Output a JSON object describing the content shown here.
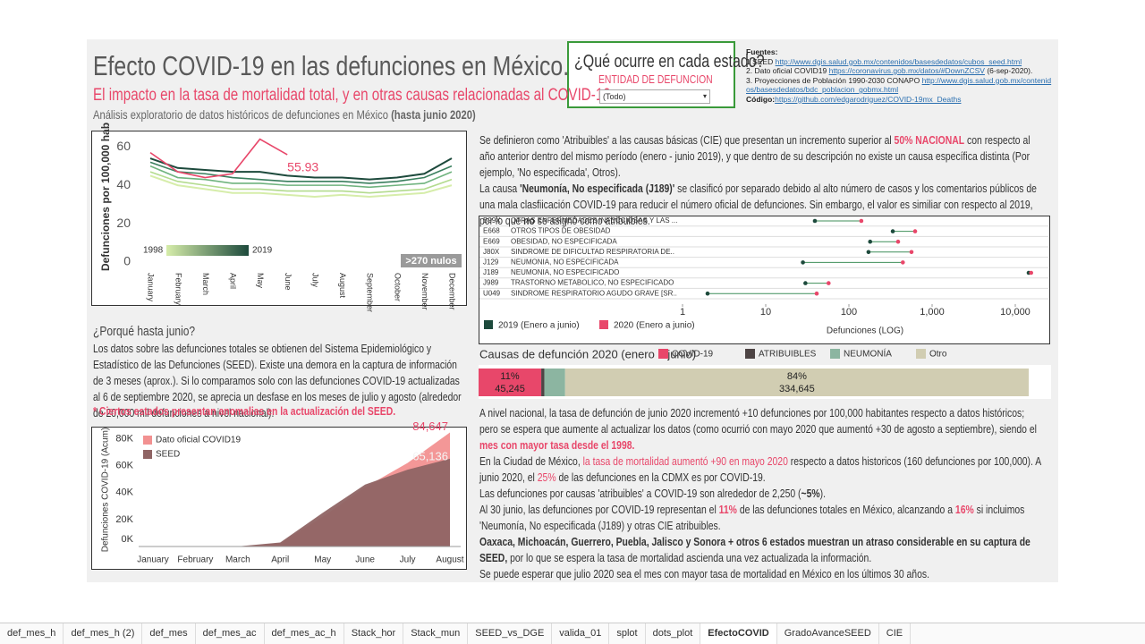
{
  "header": {
    "title": "Efecto COVID-19 en las defunciones en México.",
    "subtitle": "El impacto en la tasa de mortalidad total, y en otras causas relacionadas al COVID-19",
    "description": [
      {
        "text": "Análisis exploratorio de datos históricos de defunciones en México "
      },
      {
        "text": "(hasta junio 2020)",
        "style": "bold"
      }
    ]
  },
  "filter": {
    "question": "¿Qué ocurre en cada estado?",
    "label": "ENTIDAD DE DEFUNCION",
    "value": "(Todo)"
  },
  "sources": {
    "title": "Fuentes:",
    "items": [
      [
        {
          "text": "1 SEED "
        },
        {
          "text": "http://www.dgis.salud.gob.mx/contenidos/basesdedatos/cubos_seed.html",
          "style": "link"
        }
      ],
      [
        {
          "text": "2. Dato oficial COVID19  "
        },
        {
          "text": "https://coronavirus.gob.mx/datos/#DownZCSV",
          "style": "link"
        },
        {
          "text": " (6-sep-2020)."
        }
      ],
      [
        {
          "text": "3. Proyecciones de Población 1990-2030 CONAPO  "
        },
        {
          "text": "http://www.dgis.salud.gob.mx/contenidos/basesdedatos/bdc_poblacion_gobmx.html",
          "style": "link"
        }
      ],
      [
        {
          "text": "Código:",
          "style": "bold"
        },
        {
          "text": "https://github.com/edgarodriguez/COVID-19mx_Deaths",
          "style": "link"
        }
      ]
    ]
  },
  "explanation": [
    [
      {
        "text": "Se definieron como 'Atribuibles' a las causas básicas (CIE) que presentan un incremento superior al "
      },
      {
        "text": "50% NACIONAL",
        "style": "redbold"
      },
      {
        "text": " con respecto al año anterior dentro del mismo período (enero - junio 2019), y que dentro de su descripción no existe un causa específica distinta (Por ejemplo, 'No especificada', Otros)."
      }
    ],
    [
      {
        "text": "La causa "
      },
      {
        "text": "'Neumonía, No especificada (J189)'",
        "style": "bold"
      },
      {
        "text": " se clasificó por separado debido al alto número de casos y los comentarios públicos de una mala clasfiicación COVID-19 para reducir el número oficial de defunciones. Sin embargo, el valor es similiar con respecto al 2019, por lo que "
      },
      {
        "text": "no",
        "style": "bold"
      },
      {
        "text": " se asignó como atribuibles."
      }
    ]
  ],
  "why": {
    "title": "¿Porqué hasta junio?",
    "body": "Los datos sobre las defunciones totales se obtienen del Sistema Epidemiológico y Estadístico de las Defunciones (SEED). Existe una demora en la captura de información de 3 meses (aprox.). Si lo comparamos solo con las defunciones COVID-19 actualizadas al 6 de septiembre 2020, se aprecia un desfase en los meses de julio y agosto (alrededor de 20,000 mil defunciones a nivel nacional).",
    "note": "* Ciertos estados presentan anomalias en la actualización del SEED."
  },
  "summary": [
    [
      {
        "text": "A nivel nacional, la tasa de defunción de junio 2020 incrementó +10 defunciones por 100,000 habitantes respecto a datos históricos; pero se espera que aumente al actualizar los datos (como ocurrió con mayo 2020 que aumentó +30 de agosto a septiembre), siendo el "
      },
      {
        "text": "mes con mayor tasa desde el 1998.",
        "style": "redbold"
      }
    ],
    [
      {
        "text": "En la Ciudad de México, "
      },
      {
        "text": "la tasa de mortalidad aumentó +90 en mayo 2020",
        "style": "red"
      },
      {
        "text": " respecto a datos historicos (160 defunciones por 100,000). A junio 2020, el "
      },
      {
        "text": "25%",
        "style": "red"
      },
      {
        "text": " de las defunciones en la CDMX es por COVID-19."
      }
    ],
    [
      {
        "text": "Las defunciones por causas 'atribuibles' a COVID-19 son alrededor de 2,250 ("
      },
      {
        "text": "~5%",
        "style": "bold"
      },
      {
        "text": ")."
      }
    ],
    [
      {
        "text": "Al 30 junio, las defunciones por COVID-19 representan el "
      },
      {
        "text": "11%",
        "style": "redbold"
      },
      {
        "text": " de las defunciones totales en México, alcanzando  a "
      },
      {
        "text": "16%",
        "style": "redbold"
      },
      {
        "text": " si incluimos 'Neumonía, No especificada (J189) y otras CIE atribuibles."
      }
    ],
    [
      {
        "text": "Oaxaca, Michoacán, Guerrero, Puebla, Jalisco y Sonora + otros 6 estados muestran un atraso considerable en su captura de SEED,",
        "style": "bold"
      },
      {
        "text": " por lo que se espera la tasa de mortalidad ascienda una vez actualizada la información."
      }
    ],
    [
      {
        "text": "Se puede esperar que julio 2020 sea el mes con mayor tasa de mortalidad en México en los últimos 30 años."
      }
    ]
  ],
  "chart_data": [
    {
      "type": "line",
      "y_label": "Defunciones por 100,000 hab",
      "categories": [
        "January",
        "February",
        "March",
        "April",
        "May",
        "June",
        "July",
        "August",
        "September",
        "October",
        "November",
        "December"
      ],
      "ylim": [
        0,
        68
      ],
      "yticks": [
        0,
        20,
        40,
        60
      ],
      "annotation": ">270 nulos",
      "series": [
        {
          "name": "1998",
          "color": "#d6edaa",
          "values": [
            45,
            40,
            38,
            36,
            36,
            35,
            34,
            35,
            34,
            35,
            36,
            40
          ]
        },
        {
          "color": "#b3db8e",
          "values": [
            47,
            42,
            40,
            38,
            38,
            37,
            37,
            37,
            36,
            37,
            38,
            43
          ]
        },
        {
          "color": "#6fb37e",
          "values": [
            50,
            44,
            43,
            41,
            41,
            40,
            40,
            40,
            39,
            40,
            41,
            47
          ]
        },
        {
          "color": "#3a7f5e",
          "values": [
            52,
            47,
            46,
            44,
            43,
            42,
            42,
            42,
            41,
            42,
            44,
            50
          ]
        },
        {
          "name": "2019",
          "color": "#1d4a3c",
          "values": [
            54,
            49,
            48,
            47,
            47,
            45,
            44,
            44,
            43,
            44,
            46,
            54
          ]
        },
        {
          "color": "#e8476a",
          "values": [
            57,
            47,
            44,
            46,
            64,
            55.93,
            null,
            null,
            null,
            null,
            null,
            null
          ],
          "value_labels": [
            null,
            null,
            null,
            null,
            null,
            "55.93",
            null,
            null,
            null,
            null,
            null,
            null
          ]
        }
      ]
    },
    {
      "type": "dot",
      "x_label": "Defunciones (LOG)",
      "log_x": true,
      "codes": [
        "B99X",
        "E668",
        "E669",
        "J80X",
        "J129",
        "J189",
        "J989",
        "U049"
      ],
      "categories": [
        "OTRAS ENFERMEDADES INFECCIOSAS Y LAS ...",
        "OTROS TIPOS DE OBESIDAD",
        "OBESIDAD, NO ESPECIFICADA",
        "SINDROME DE DIFICULTAD RESPIRATORIA DE..",
        "NEUMONIA, NO ESPECIFICADA",
        "NEUMONIA, NO ESPECIFICADO",
        "TRASTORNO METABOLICO, NO ESPECIFICADO",
        "SINDROME RESPIRATORIO AGUDO GRAVE [SR.."
      ],
      "xlim": [
        1,
        25000
      ],
      "xticks": [
        1,
        10,
        100,
        {
          "value": 1000,
          "label": "1,000"
        },
        {
          "value": 10000,
          "label": "10,000"
        }
      ],
      "series": [
        {
          "name": "2019 (Enero a junio)",
          "color": "#1d4a3c",
          "values": [
            39,
            337,
            180,
            172,
            28,
            14500,
            30,
            2
          ]
        },
        {
          "name": "2020 (Enero a junio)",
          "color": "#e8476a",
          "values": [
            141,
            625,
            390,
            565,
            445,
            15500,
            57,
            41
          ]
        }
      ]
    },
    {
      "type": "stacked-bar",
      "title": "Causas de defunción 2020 (enero a junio)",
      "series": [
        {
          "name": "COVID-19",
          "color": "#e8476a",
          "values": [
            45245
          ],
          "value_labels": [
            "45,245"
          ],
          "share": 11,
          "share_label": "11%"
        },
        {
          "name": "ATRIBUIBLES",
          "color": "#4e4545",
          "values": [
            2250
          ]
        },
        {
          "name": "NEUMONÍA",
          "color": "#8cb5a1",
          "values": [
            15000
          ]
        },
        {
          "name": "Otro",
          "color": "#d1cdb2",
          "values": [
            334645
          ],
          "value_labels": [
            "334,645"
          ],
          "share": 84,
          "share_label": "84%"
        }
      ]
    },
    {
      "type": "area",
      "y_label": "Defunciones COVID-19 (Acum)",
      "categories": [
        "January",
        "February",
        "March",
        "April",
        "May",
        "June",
        "July",
        "August"
      ],
      "ylim": [
        0,
        87000
      ],
      "yticks": [
        {
          "value": 0,
          "label": "0K"
        },
        {
          "value": 20000,
          "label": "20K"
        },
        {
          "value": 40000,
          "label": "40K"
        },
        {
          "value": 60000,
          "label": "60K"
        },
        {
          "value": 80000,
          "label": "80K"
        }
      ],
      "series": [
        {
          "name": "Dato oficial COVID19",
          "color": "#f29191",
          "label_color": "#e8476a",
          "values": [
            0,
            0,
            30,
            2500,
            22000,
            44000,
            62000,
            84647
          ],
          "value_labels": [
            null,
            null,
            null,
            null,
            null,
            null,
            null,
            "84,647"
          ]
        },
        {
          "name": "SEED",
          "color": "#8f6464",
          "label_color": "#f4f4f4",
          "values": [
            0,
            0,
            50,
            3000,
            25000,
            46000,
            57000,
            65136
          ],
          "value_labels": [
            null,
            null,
            null,
            null,
            null,
            null,
            null,
            "65,136"
          ]
        }
      ]
    }
  ],
  "tabs": {
    "items": [
      "def_mes_h",
      "def_mes_h (2)",
      "def_mes",
      "def_mes_ac",
      "def_mes_ac_h",
      "Stack_hor",
      "Stack_mun",
      "SEED_vs_DGE",
      "valida_01",
      "splot",
      "dots_plot",
      "EfectoCOVID",
      "GradoAvanceSEED",
      "CIE"
    ],
    "active": 11
  }
}
